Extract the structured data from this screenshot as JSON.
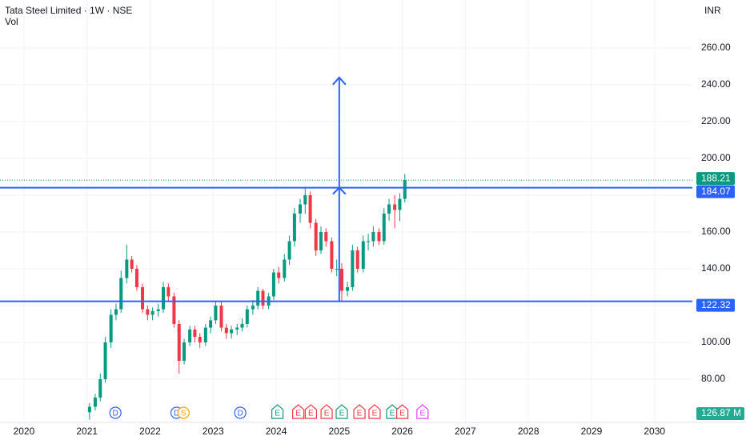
{
  "chart_data": {
    "type": "candlestick",
    "title": "Tata Steel Limited · 1W · NSE",
    "subtitle": "Vol",
    "currency": "INR",
    "volume_label": "126.87 M",
    "x": [
      2021.04,
      2021.13,
      2021.21,
      2021.29,
      2021.38,
      2021.46,
      2021.54,
      2021.63,
      2021.71,
      2021.79,
      2021.88,
      2021.96,
      2022.04,
      2022.13,
      2022.21,
      2022.29,
      2022.38,
      2022.46,
      2022.54,
      2022.63,
      2022.71,
      2022.79,
      2022.88,
      2022.96,
      2023.04,
      2023.13,
      2023.21,
      2023.29,
      2023.38,
      2023.46,
      2023.54,
      2023.63,
      2023.71,
      2023.79,
      2023.88,
      2023.96,
      2024.04,
      2024.13,
      2024.21,
      2024.29,
      2024.38,
      2024.46,
      2024.54,
      2024.63,
      2024.71,
      2024.79,
      2024.88,
      2024.96,
      2025.04,
      2025.13,
      2025.21,
      2025.29,
      2025.38,
      2025.46,
      2025.54,
      2025.63,
      2025.71,
      2025.79,
      2025.88,
      2025.96,
      2026.04
    ],
    "open": [
      62,
      65,
      70,
      80,
      100,
      115,
      118,
      135,
      145,
      140,
      130,
      118,
      115,
      117,
      118,
      130,
      125,
      110,
      90,
      100,
      107,
      103,
      100,
      108,
      112,
      120,
      108,
      105,
      107,
      108,
      110,
      118,
      120,
      128,
      120,
      125,
      138,
      135,
      145,
      155,
      170,
      175,
      180,
      165,
      150,
      160,
      155,
      140,
      140,
      128,
      130,
      150,
      140,
      155,
      155,
      160,
      155,
      170,
      175,
      172,
      178
    ],
    "high": [
      67,
      72,
      83,
      103,
      118,
      121,
      139,
      153,
      147,
      142,
      132,
      120,
      119,
      121,
      133,
      132,
      127,
      112,
      102,
      109,
      109,
      105,
      110,
      114,
      122,
      122,
      110,
      109,
      110,
      113,
      120,
      123,
      130,
      129,
      127,
      140,
      141,
      148,
      158,
      173,
      178,
      184.6,
      182,
      167,
      163,
      162,
      157,
      145,
      143,
      133,
      153,
      152,
      158,
      159,
      163,
      162,
      173,
      178,
      180,
      181,
      191.5
    ],
    "low": [
      58,
      63,
      68,
      78,
      97,
      112,
      116,
      132,
      138,
      128,
      116,
      112,
      112,
      114,
      116,
      122,
      108,
      83,
      88,
      98,
      100,
      97,
      98,
      105,
      110,
      106,
      102,
      102,
      104,
      106,
      108,
      115,
      118,
      118,
      118,
      123,
      132,
      133,
      142,
      152,
      165,
      170,
      162,
      147,
      148,
      152,
      138,
      136,
      122.32,
      125,
      128,
      138,
      138,
      150,
      152,
      153,
      153,
      166,
      162,
      166,
      176
    ],
    "close": [
      65,
      70,
      80,
      100,
      115,
      118,
      135,
      145,
      140,
      130,
      118,
      115,
      117,
      118,
      130,
      125,
      110,
      90,
      100,
      107,
      103,
      100,
      108,
      112,
      120,
      108,
      105,
      107,
      108,
      110,
      118,
      120,
      128,
      120,
      125,
      138,
      135,
      145,
      155,
      170,
      175,
      180,
      165,
      150,
      160,
      155,
      140,
      140,
      128,
      130,
      150,
      140,
      155,
      155,
      160,
      155,
      170,
      175,
      172,
      178,
      188.21
    ],
    "up_color": "#089981",
    "down_color": "#f23645",
    "xlim": [
      2019.62,
      2030.6
    ],
    "ylim": [
      56.5,
      286.1
    ],
    "xticks": [
      2020,
      2021,
      2022,
      2023,
      2024,
      2025,
      2026,
      2027,
      2028,
      2029,
      2030
    ],
    "yticks": [
      {
        "value": 80,
        "label": "80.00"
      },
      {
        "value": 100,
        "label": "100.00"
      },
      {
        "value": 120,
        "label": "120.00"
      },
      {
        "value": 140,
        "label": "140.00"
      },
      {
        "value": 160,
        "label": "160.00"
      },
      {
        "value": 180,
        "label": "180.00"
      },
      {
        "value": 200,
        "label": "200.00"
      },
      {
        "value": 220,
        "label": "220.00"
      },
      {
        "value": 240,
        "label": "240.00"
      },
      {
        "value": 260,
        "label": "260.00"
      }
    ],
    "grid": true,
    "price_lines": [
      {
        "value": 184.07,
        "color": "#2962ff"
      },
      {
        "value": 122.32,
        "color": "#2962ff"
      }
    ],
    "last_price": {
      "value": 188.21,
      "color": "#089981"
    },
    "measure": {
      "x": 2025.0,
      "from": 122.32,
      "to": 244,
      "color": "#2962ff"
    },
    "events": [
      {
        "x": 2021.45,
        "label": "D",
        "color": "#2962ff",
        "shape": "circle"
      },
      {
        "x": 2022.42,
        "label": "D",
        "color": "#2962ff",
        "shape": "circle"
      },
      {
        "x": 2022.53,
        "label": "S",
        "color": "#f59f00",
        "shape": "circle"
      },
      {
        "x": 2023.43,
        "label": "D",
        "color": "#2962ff",
        "shape": "circle"
      },
      {
        "x": 2024.02,
        "label": "E",
        "color": "#089981",
        "shape": "flag"
      },
      {
        "x": 2024.35,
        "label": "E",
        "color": "#f23645",
        "shape": "flag"
      },
      {
        "x": 2024.55,
        "label": "E",
        "color": "#f23645",
        "shape": "flag"
      },
      {
        "x": 2024.8,
        "label": "E",
        "color": "#f23645",
        "shape": "flag"
      },
      {
        "x": 2025.04,
        "label": "E",
        "color": "#089981",
        "shape": "flag"
      },
      {
        "x": 2025.32,
        "label": "E",
        "color": "#f23645",
        "shape": "flag"
      },
      {
        "x": 2025.56,
        "label": "E",
        "color": "#f23645",
        "shape": "flag"
      },
      {
        "x": 2025.84,
        "label": "E",
        "color": "#089981",
        "shape": "flag"
      },
      {
        "x": 2026.0,
        "label": "E",
        "color": "#f23645",
        "shape": "flag"
      },
      {
        "x": 2026.32,
        "label": "E",
        "color": "#e040fb",
        "shape": "flag"
      }
    ]
  }
}
